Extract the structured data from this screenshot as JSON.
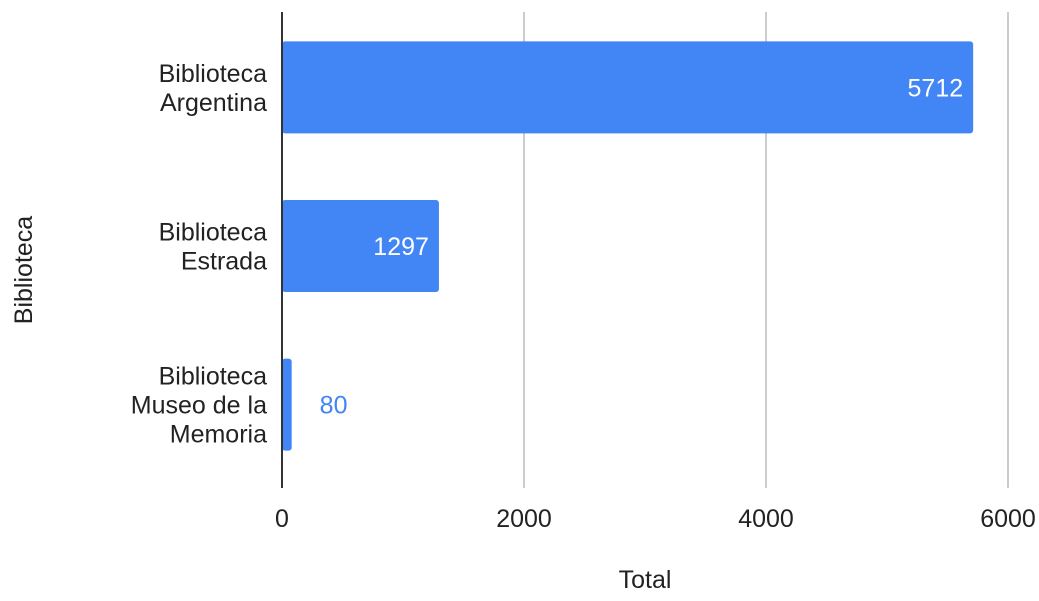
{
  "chart_data": {
    "type": "bar",
    "orientation": "horizontal",
    "categories": [
      [
        "Biblioteca",
        "Argentina"
      ],
      [
        "Biblioteca",
        "Estrada"
      ],
      [
        "Biblioteca",
        "Museo de la",
        "Memoria"
      ]
    ],
    "values": [
      5712,
      1297,
      80
    ],
    "value_labels": [
      "5712",
      "1297",
      "80"
    ],
    "xlabel": "Total",
    "ylabel": "Biblioteca",
    "xlim": [
      0,
      6000
    ],
    "xticks": [
      0,
      2000,
      4000,
      6000
    ],
    "xtick_labels": [
      "0",
      "2000",
      "4000",
      "6000"
    ],
    "grid": true,
    "legend": "none",
    "colors": {
      "bar": "#4285f4",
      "label_inside": "#ffffff",
      "label_outside": "#4285f4",
      "grid": "#cccccc",
      "axis": "#333333"
    }
  }
}
